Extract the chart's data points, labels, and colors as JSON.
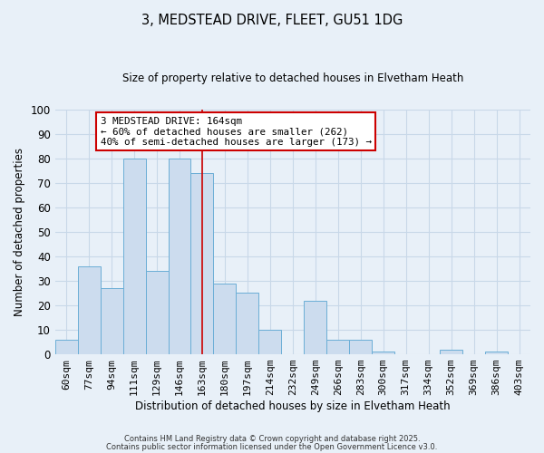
{
  "title": "3, MEDSTEAD DRIVE, FLEET, GU51 1DG",
  "subtitle": "Size of property relative to detached houses in Elvetham Heath",
  "xlabel": "Distribution of detached houses by size in Elvetham Heath",
  "ylabel": "Number of detached properties",
  "bar_labels": [
    "60sqm",
    "77sqm",
    "94sqm",
    "111sqm",
    "129sqm",
    "146sqm",
    "163sqm",
    "180sqm",
    "197sqm",
    "214sqm",
    "232sqm",
    "249sqm",
    "266sqm",
    "283sqm",
    "300sqm",
    "317sqm",
    "334sqm",
    "352sqm",
    "369sqm",
    "386sqm",
    "403sqm"
  ],
  "bar_values": [
    6,
    36,
    27,
    80,
    34,
    80,
    74,
    29,
    25,
    10,
    0,
    22,
    6,
    6,
    1,
    0,
    0,
    2,
    0,
    1,
    0
  ],
  "bar_color": "#ccdcee",
  "bar_edge_color": "#6baed6",
  "vline_index": 6,
  "vline_color": "#cc0000",
  "annotation_text": "3 MEDSTEAD DRIVE: 164sqm\n← 60% of detached houses are smaller (262)\n40% of semi-detached houses are larger (173) →",
  "annotation_box_color": "#cc0000",
  "annotation_bg": "#ffffff",
  "grid_color": "#c8d8e8",
  "background_color": "#e8f0f8",
  "ylim": [
    0,
    100
  ],
  "yticks": [
    0,
    10,
    20,
    30,
    40,
    50,
    60,
    70,
    80,
    90,
    100
  ],
  "footnote1": "Contains HM Land Registry data © Crown copyright and database right 2025.",
  "footnote2": "Contains public sector information licensed under the Open Government Licence v3.0."
}
